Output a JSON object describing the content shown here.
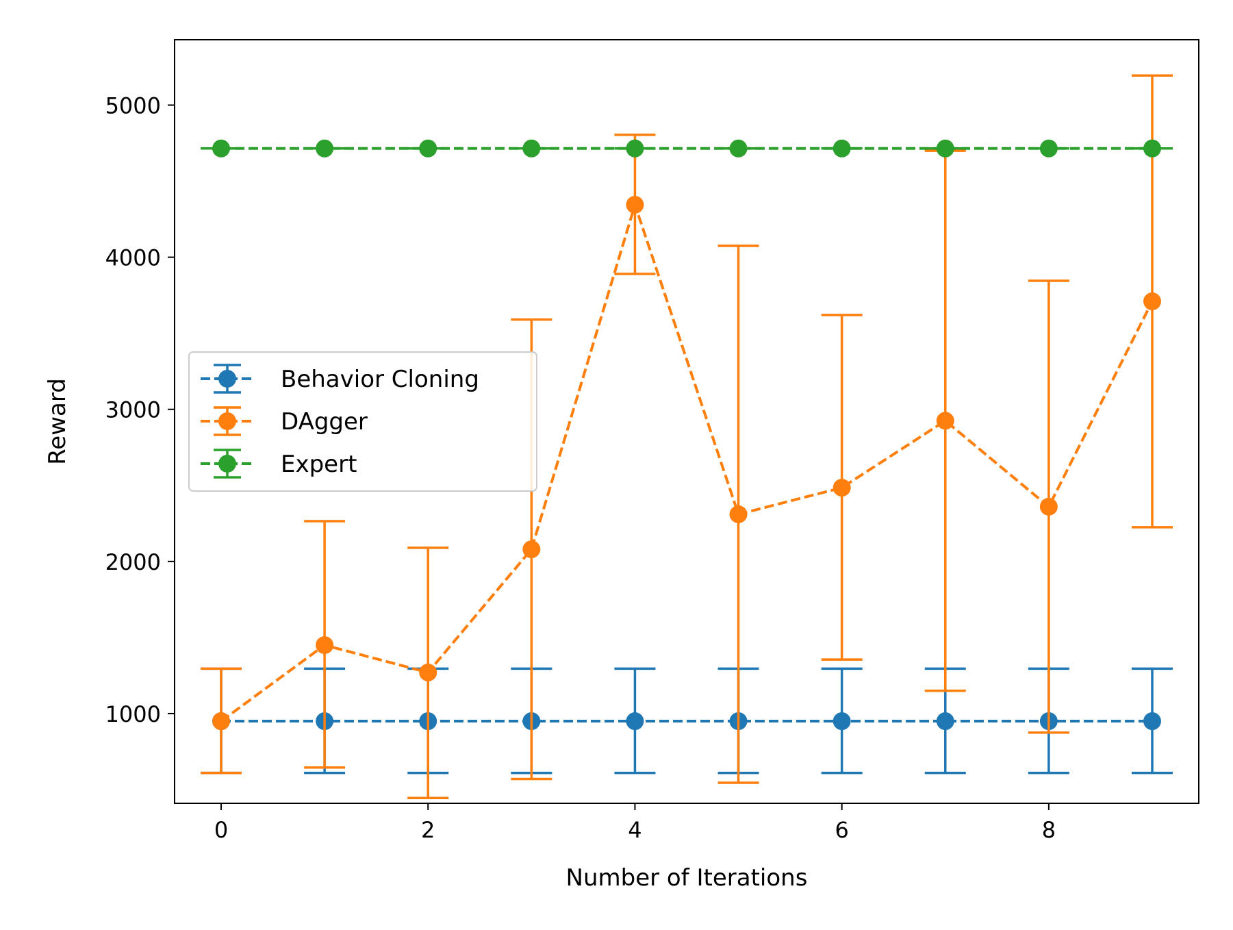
{
  "chart_data": {
    "type": "line",
    "title": "",
    "xlabel": "Number of Iterations",
    "ylabel": "Reward",
    "xlim": [
      -0.45,
      9.45
    ],
    "ylim": [
      410,
      5430
    ],
    "xticks": [
      0,
      2,
      4,
      6,
      8
    ],
    "yticks": [
      1000,
      2000,
      3000,
      4000,
      5000
    ],
    "grid": false,
    "legend_position": "center-left",
    "x": [
      0,
      1,
      2,
      3,
      4,
      5,
      6,
      7,
      8,
      9
    ],
    "series": [
      {
        "name": "Behavior Cloning",
        "color": "#1f77b4",
        "line_style": "dashed",
        "marker": "circle",
        "values": [
          950,
          950,
          950,
          950,
          950,
          950,
          950,
          950,
          950,
          950
        ],
        "error_low": [
          610,
          610,
          610,
          610,
          610,
          610,
          610,
          610,
          610,
          610
        ],
        "error_high": [
          1295,
          1295,
          1295,
          1295,
          1295,
          1295,
          1295,
          1295,
          1295,
          1295
        ]
      },
      {
        "name": "DAgger",
        "color": "#ff7f0e",
        "line_style": "dashed",
        "marker": "circle",
        "values": [
          950,
          1450,
          1270,
          2080,
          4345,
          2310,
          2485,
          2925,
          2360,
          3710
        ],
        "error_low": [
          610,
          645,
          445,
          570,
          3890,
          545,
          1355,
          1150,
          875,
          2225
        ],
        "error_high": [
          1295,
          2265,
          2090,
          3590,
          4805,
          4075,
          3620,
          4700,
          3845,
          5195
        ]
      },
      {
        "name": "Expert",
        "color": "#2ca02c",
        "line_style": "dashed",
        "marker": "circle",
        "values": [
          4715,
          4715,
          4715,
          4715,
          4715,
          4715,
          4715,
          4715,
          4715,
          4715
        ],
        "error_low": [
          4715,
          4715,
          4715,
          4715,
          4715,
          4715,
          4715,
          4715,
          4715,
          4715
        ],
        "error_high": [
          4715,
          4715,
          4715,
          4715,
          4715,
          4715,
          4715,
          4715,
          4715,
          4715
        ]
      }
    ]
  }
}
